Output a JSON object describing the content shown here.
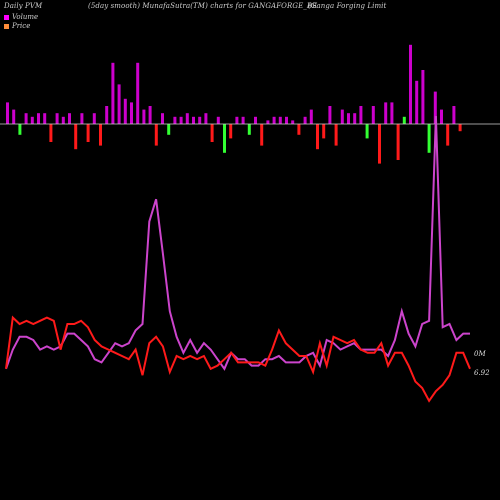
{
  "header": {
    "left": "Daily PVM",
    "middle": "(5day smooth) MunafaSutra(TM) charts for GANGAFORGE_BE",
    "right": "(Ganga  Forging Limit"
  },
  "legend": [
    {
      "label": "Volume",
      "color": "#ff00ff"
    },
    {
      "label": "Price",
      "color": "#ff8c3a"
    }
  ],
  "axis_labels": {
    "volume": "0M",
    "price": "6.92"
  },
  "colors": {
    "background": "#000000",
    "volume_line": "#cc44cc",
    "price_line": "#ff1a1a",
    "bar_up": "#cc00cc",
    "bar_down_red": "#ff1a1a",
    "bar_green": "#33ff33",
    "baseline": "#cfcfcf"
  },
  "chart_data": {
    "type": "line",
    "title": "Daily PVM (5day smooth) MunafaSutra(TM) charts for GANGAFORGE_BE",
    "ylim": [
      0,
      1
    ],
    "series": [
      {
        "name": "Volume",
        "values": [
          0.16,
          0.22,
          0.26,
          0.26,
          0.25,
          0.22,
          0.23,
          0.22,
          0.23,
          0.27,
          0.27,
          0.25,
          0.23,
          0.19,
          0.18,
          0.21,
          0.24,
          0.23,
          0.24,
          0.28,
          0.3,
          0.62,
          0.69,
          0.52,
          0.34,
          0.26,
          0.21,
          0.25,
          0.21,
          0.24,
          0.22,
          0.19,
          0.16,
          0.21,
          0.19,
          0.19,
          0.17,
          0.17,
          0.19,
          0.19,
          0.2,
          0.18,
          0.18,
          0.18,
          0.2,
          0.21,
          0.17,
          0.25,
          0.24,
          0.22,
          0.23,
          0.24,
          0.22,
          0.22,
          0.22,
          0.22,
          0.2,
          0.25,
          0.34,
          0.27,
          0.23,
          0.3,
          0.31,
          0.95,
          0.29,
          0.3,
          0.25,
          0.27,
          0.27
        ]
      },
      {
        "name": "Price",
        "values": [
          0.16,
          0.32,
          0.3,
          0.31,
          0.3,
          0.31,
          0.32,
          0.31,
          0.22,
          0.3,
          0.3,
          0.31,
          0.29,
          0.25,
          0.23,
          0.22,
          0.21,
          0.2,
          0.19,
          0.22,
          0.14,
          0.24,
          0.26,
          0.23,
          0.15,
          0.2,
          0.19,
          0.2,
          0.19,
          0.2,
          0.16,
          0.17,
          0.19,
          0.21,
          0.18,
          0.18,
          0.18,
          0.18,
          0.17,
          0.22,
          0.28,
          0.24,
          0.22,
          0.2,
          0.2,
          0.15,
          0.24,
          0.17,
          0.26,
          0.25,
          0.24,
          0.25,
          0.22,
          0.21,
          0.21,
          0.24,
          0.17,
          0.21,
          0.21,
          0.17,
          0.12,
          0.1,
          0.06,
          0.09,
          0.11,
          0.14,
          0.21,
          0.21,
          0.16
        ]
      }
    ],
    "bars": {
      "baseline_label": "",
      "values": [
        0.12,
        0.08,
        -0.06,
        0.06,
        0.04,
        0.06,
        0.06,
        -0.1,
        0.06,
        0.04,
        0.06,
        -0.14,
        0.06,
        -0.1,
        0.06,
        -0.12,
        0.1,
        0.34,
        0.22,
        0.14,
        0.12,
        0.34,
        0.08,
        0.1,
        -0.12,
        0.06,
        -0.06,
        0.04,
        0.04,
        0.06,
        0.04,
        0.04,
        0.06,
        -0.1,
        0.04,
        -0.16,
        -0.08,
        0.04,
        0.04,
        -0.06,
        0.04,
        -0.12,
        0.02,
        0.04,
        0.04,
        0.04,
        0.02,
        -0.06,
        0.04,
        0.08,
        -0.14,
        -0.08,
        0.1,
        -0.12,
        0.08,
        0.06,
        0.06,
        0.1,
        -0.08,
        0.1,
        -0.22,
        0.12,
        0.12,
        -0.2,
        0.04,
        0.44,
        0.24,
        0.3,
        -0.16,
        0.18,
        0.08,
        -0.12,
        0.1,
        -0.04
      ],
      "colors": [
        "up",
        "up",
        "green",
        "up",
        "up",
        "up",
        "up",
        "red",
        "up",
        "up",
        "up",
        "red",
        "up",
        "red",
        "up",
        "red",
        "up",
        "up",
        "up",
        "up",
        "up",
        "up",
        "up",
        "up",
        "red",
        "up",
        "green",
        "up",
        "up",
        "up",
        "up",
        "up",
        "up",
        "red",
        "up",
        "green",
        "red",
        "up",
        "up",
        "green",
        "up",
        "red",
        "up",
        "up",
        "up",
        "up",
        "up",
        "red",
        "up",
        "up",
        "red",
        "red",
        "up",
        "red",
        "up",
        "up",
        "up",
        "up",
        "green",
        "up",
        "red",
        "up",
        "up",
        "red",
        "green",
        "up",
        "up",
        "up",
        "green",
        "up",
        "up",
        "red",
        "up",
        "red"
      ]
    }
  }
}
